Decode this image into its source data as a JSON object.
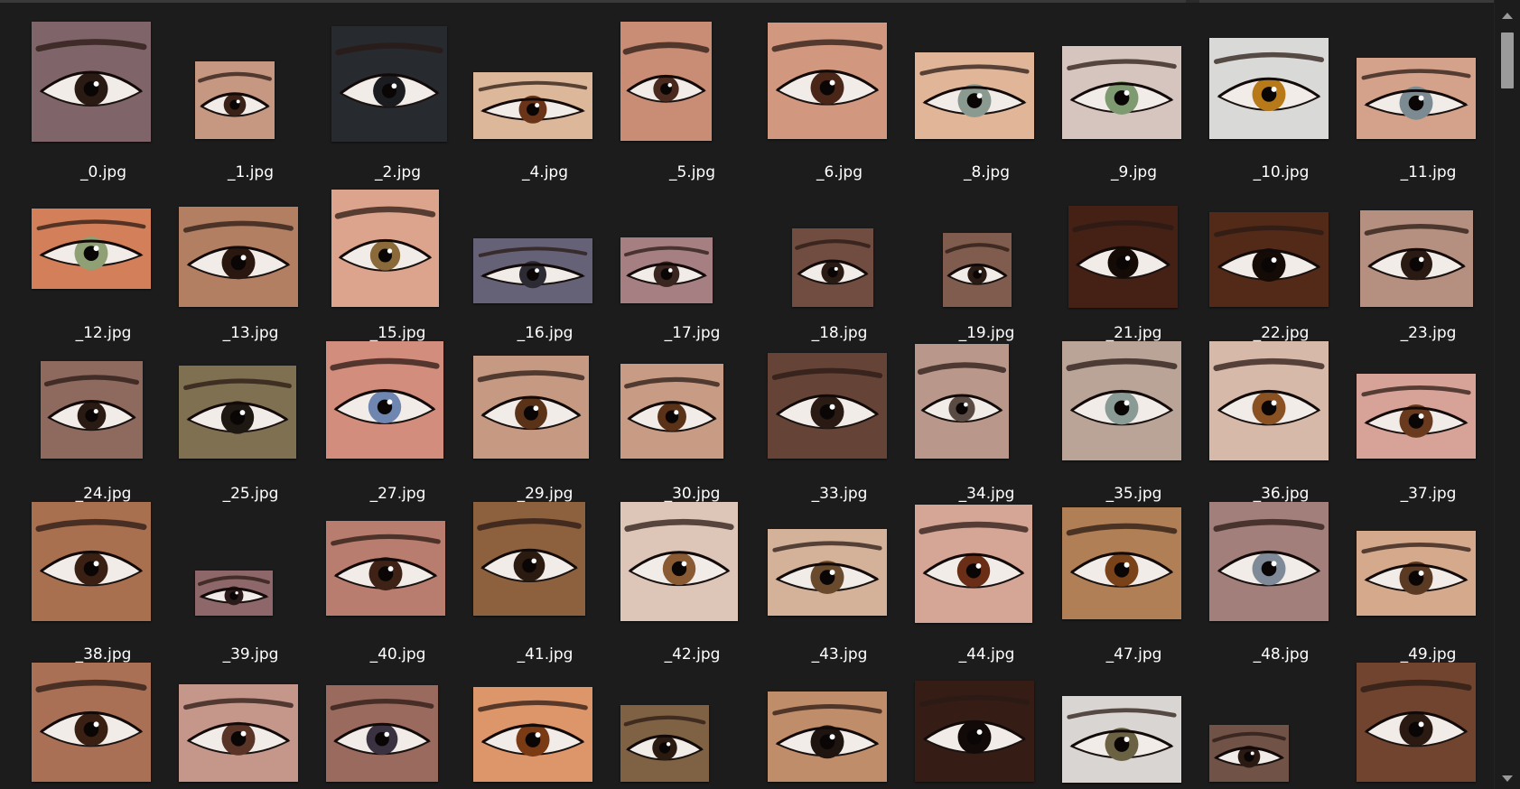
{
  "files": [
    {
      "name": "_0.jpg",
      "skin": "#8a6e74",
      "iris": "#2a1a14"
    },
    {
      "name": "_1.jpg",
      "skin": "#d8a58c",
      "iris": "#3a2218"
    },
    {
      "name": "_2.jpg",
      "skin": "#2b2e33",
      "iris": "#1a1c20"
    },
    {
      "name": "_4.jpg",
      "skin": "#f0c7a6",
      "iris": "#6a3418"
    },
    {
      "name": "_5.jpg",
      "skin": "#d99a7e",
      "iris": "#4a2a1e"
    },
    {
      "name": "_6.jpg",
      "skin": "#e3a58a",
      "iris": "#4a2618"
    },
    {
      "name": "_8.jpg",
      "skin": "#f3c5a5",
      "iris": "#8a9a90"
    },
    {
      "name": "_9.jpg",
      "skin": "#e9d6cf",
      "iris": "#7e9a70"
    },
    {
      "name": "_10.jpg",
      "skin": "#ececea",
      "iris": "#b87a18"
    },
    {
      "name": "_11.jpg",
      "skin": "#e7b096",
      "iris": "#7c8a92"
    },
    {
      "name": "_12.jpg",
      "skin": "#e48a62",
      "iris": "#8ea074"
    },
    {
      "name": "_13.jpg",
      "skin": "#c28a6c",
      "iris": "#2a1810"
    },
    {
      "name": "_15.jpg",
      "skin": "#f0b29a",
      "iris": "#8a6a3a"
    },
    {
      "name": "_16.jpg",
      "skin": "#6e6a80",
      "iris": "#2c2a32"
    },
    {
      "name": "_17.jpg",
      "skin": "#b58a8e",
      "iris": "#3a2620"
    },
    {
      "name": "_18.jpg",
      "skin": "#7a5446",
      "iris": "#2a1a14"
    },
    {
      "name": "_19.jpg",
      "skin": "#8a6454",
      "iris": "#2a1a14"
    },
    {
      "name": "_21.jpg",
      "skin": "#4a2416",
      "iris": "#140a06"
    },
    {
      "name": "_22.jpg",
      "skin": "#5a2e1a",
      "iris": "#140a06"
    },
    {
      "name": "_23.jpg",
      "skin": "#c59c8a",
      "iris": "#2a1a14"
    },
    {
      "name": "_24.jpg",
      "skin": "#9a7266",
      "iris": "#2a1a14"
    },
    {
      "name": "_25.jpg",
      "skin": "#8a7a5a",
      "iris": "#1e1812"
    },
    {
      "name": "_27.jpg",
      "skin": "#e49a88",
      "iris": "#6e86b0"
    },
    {
      "name": "_29.jpg",
      "skin": "#d7a88e",
      "iris": "#5a3218"
    },
    {
      "name": "_30.jpg",
      "skin": "#d9aa90",
      "iris": "#5a3218"
    },
    {
      "name": "_33.jpg",
      "skin": "#6e4a3c",
      "iris": "#2a1a14"
    },
    {
      "name": "_34.jpg",
      "skin": "#c9a597",
      "iris": "#5a4a44"
    },
    {
      "name": "_35.jpg",
      "skin": "#c9b2a4",
      "iris": "#8a9a94"
    },
    {
      "name": "_36.jpg",
      "skin": "#eac9b8",
      "iris": "#8a5222"
    },
    {
      "name": "_37.jpg",
      "skin": "#eab0a4",
      "iris": "#6a3a1e"
    },
    {
      "name": "_38.jpg",
      "skin": "#b87a56",
      "iris": "#3a2012"
    },
    {
      "name": "_39.jpg",
      "skin": "#9a7072",
      "iris": "#2a1a1a"
    },
    {
      "name": "_40.jpg",
      "skin": "#c88878",
      "iris": "#3e2216"
    },
    {
      "name": "_41.jpg",
      "skin": "#9a6a44",
      "iris": "#2a1a10"
    },
    {
      "name": "_42.jpg",
      "skin": "#f0d6c8",
      "iris": "#8a5a32"
    },
    {
      "name": "_43.jpg",
      "skin": "#e6c2a8",
      "iris": "#6a4a2c"
    },
    {
      "name": "_44.jpg",
      "skin": "#e8b4a2",
      "iris": "#6a2e16"
    },
    {
      "name": "_47.jpg",
      "skin": "#c08a5e",
      "iris": "#7a4218"
    },
    {
      "name": "_48.jpg",
      "skin": "#b08a86",
      "iris": "#7e8a98"
    },
    {
      "name": "_49.jpg",
      "skin": "#e8b898",
      "iris": "#5a3a22"
    },
    {
      "name": "",
      "skin": "#b87a5e",
      "iris": "#3a2012"
    },
    {
      "name": "",
      "skin": "#d6a496",
      "iris": "#5a3426"
    },
    {
      "name": "",
      "skin": "#a87466",
      "iris": "#3a3240"
    },
    {
      "name": "",
      "skin": "#f0a274",
      "iris": "#7a3a14"
    },
    {
      "name": "",
      "skin": "#8a6a4a",
      "iris": "#2a1a10"
    },
    {
      "name": "",
      "skin": "#d09a74",
      "iris": "#1e1410"
    },
    {
      "name": "",
      "skin": "#3a2018",
      "iris": "#120a08"
    },
    {
      "name": "",
      "skin": "#ece8e4",
      "iris": "#6a6242"
    },
    {
      "name": "",
      "skin": "#7a5a4e",
      "iris": "#2a1a14"
    },
    {
      "name": "",
      "skin": "#7a4a32",
      "iris": "#2a1a12"
    }
  ]
}
